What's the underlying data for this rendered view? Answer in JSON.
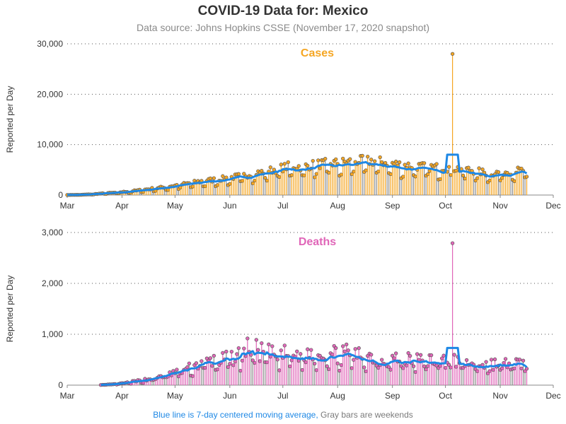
{
  "title": "COVID-19 Data for: Mexico",
  "subtitle": "Data source: Johns Hopkins CSSE (November 17, 2020 snapshot)",
  "footer": {
    "blue_text": "Blue line is 7-day centered moving average,",
    "gray_text": "Gray bars are weekends"
  },
  "colors": {
    "cases": "#f5a623",
    "deaths": "#e066b8",
    "moving_average": "#1e88e5",
    "weekend": "#8c8c8c",
    "axis": "#888888"
  },
  "chart_data": [
    {
      "type": "bar",
      "title": "Cases",
      "ylabel": "Reported per Day",
      "ylim": [
        0,
        30000
      ],
      "yticks": [
        0,
        10000,
        20000,
        30000
      ],
      "ytick_labels": [
        "0",
        "10,000",
        "20,000",
        "30,000"
      ],
      "xlim": [
        "2020-03-01",
        "2020-12-01"
      ],
      "xtick_labels": [
        "Mar",
        "Apr",
        "May",
        "Jun",
        "Jul",
        "Aug",
        "Sep",
        "Oct",
        "Nov",
        "Dec"
      ],
      "grid": "horizontal dotted",
      "date_start": "2020-03-01",
      "date_end": "2020-11-16",
      "weekly_level": [
        20,
        50,
        150,
        350,
        500,
        700,
        1000,
        1300,
        1600,
        2000,
        2400,
        2800,
        3100,
        3400,
        3800,
        4200,
        4700,
        5200,
        5800,
        5600,
        6100,
        6300,
        6400,
        6700,
        6800,
        6700,
        6400,
        6000,
        5800,
        5600,
        5500,
        5400,
        5200,
        4800,
        4300,
        4500,
        4800,
        4900,
        5100,
        6000,
        5900,
        6000,
        5600,
        5100,
        4000
      ],
      "spike": {
        "date": "2020-10-05",
        "value": 28000
      },
      "ma_plateau": {
        "from": "2020-10-02",
        "to": "2020-10-08",
        "value": 8000
      },
      "fuzz": 0.15,
      "seed": 7
    },
    {
      "type": "bar",
      "title": "Deaths",
      "ylabel": "Reported per Day",
      "ylim": [
        0,
        3000
      ],
      "yticks": [
        0,
        1000,
        2000,
        3000
      ],
      "ytick_labels": [
        "0",
        "1,000",
        "2,000",
        "3,000"
      ],
      "xlim": [
        "2020-03-01",
        "2020-12-01"
      ],
      "xtick_labels": [
        "Mar",
        "Apr",
        "May",
        "Jun",
        "Jul",
        "Aug",
        "Sep",
        "Oct",
        "Nov",
        "Dec"
      ],
      "grid": "horizontal dotted",
      "date_start": "2020-03-20",
      "date_end": "2020-11-16",
      "weekly_level": [
        5,
        15,
        40,
        80,
        120,
        180,
        250,
        320,
        420,
        480,
        500,
        560,
        750,
        640,
        600,
        600,
        580,
        620,
        640,
        600,
        620,
        600,
        560,
        500,
        520,
        500,
        480,
        500,
        480,
        460,
        430,
        420,
        420,
        410,
        430,
        450,
        470,
        480,
        500,
        480
      ],
      "spike": {
        "date": "2020-10-05",
        "value": 2790
      },
      "ma_plateau": {
        "from": "2020-10-02",
        "to": "2020-10-08",
        "value": 730
      },
      "fuzz": 0.3,
      "seed": 13
    }
  ]
}
